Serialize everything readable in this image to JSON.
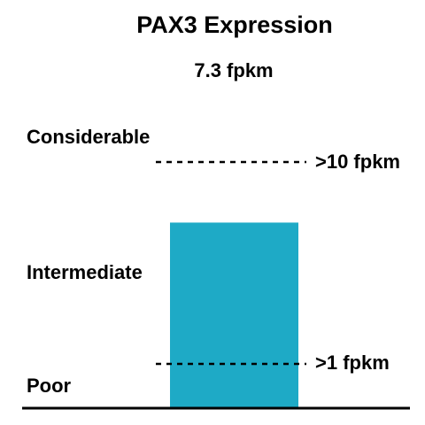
{
  "chart_data": {
    "type": "bar",
    "title": "PAX3 Expression",
    "subtitle": "7.3 fpkm",
    "series": [
      {
        "values": [
          7.3
        ],
        "color": "#1eaac6"
      }
    ],
    "categories": [
      ""
    ],
    "unit": "fpkm",
    "tiers": [
      {
        "label": "Considerable"
      },
      {
        "label": "Intermediate"
      },
      {
        "label": "Poor"
      }
    ],
    "thresholds": [
      {
        "value": 10,
        "label": ">10 fpkm"
      },
      {
        "value": 1,
        "label": ">1 fpkm"
      }
    ]
  }
}
